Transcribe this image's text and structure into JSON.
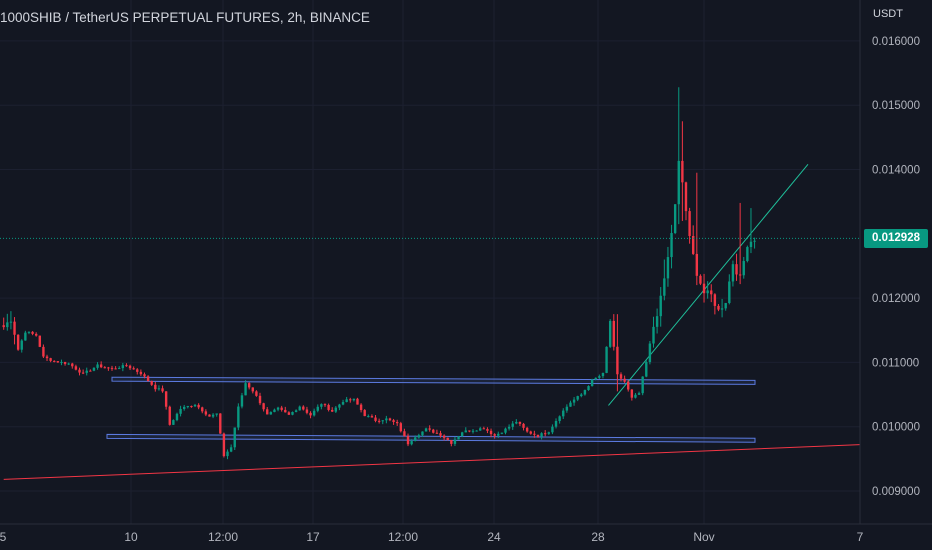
{
  "header": {
    "title": "1000SHIB / TetherUS PERPETUAL FUTURES, 2h, BINANCE",
    "price_unit": "USDT"
  },
  "colors": {
    "background": "#131722",
    "up": "#089981",
    "down": "#f23645",
    "channel": "#5b7ae0",
    "support": "#f23645",
    "trend": "#1fbf9a"
  },
  "chart_data": {
    "type": "candlestick",
    "title": "1000SHIB / TetherUS PERPETUAL FUTURES, 2h, BINANCE",
    "y_unit": "USDT",
    "ylim": [
      0.0085,
      0.0161
    ],
    "y_ticks": [
      "0.016000",
      "0.015000",
      "0.014000",
      "0.012000",
      "0.011000",
      "0.010000",
      "0.009000"
    ],
    "x_ticks": [
      "5",
      "10",
      "12:00",
      "17",
      "12:00",
      "24",
      "28",
      "Nov",
      "7"
    ],
    "last_price": 0.012928,
    "last_price_label": "0.012928",
    "anchors": [
      [
        0,
        0.01155
      ],
      [
        2,
        0.01168
      ],
      [
        4,
        0.0112
      ],
      [
        6,
        0.01148
      ],
      [
        9,
        0.01142
      ],
      [
        11,
        0.01108
      ],
      [
        14,
        0.01102
      ],
      [
        18,
        0.01098
      ],
      [
        22,
        0.01082
      ],
      [
        26,
        0.01095
      ],
      [
        30,
        0.0109
      ],
      [
        34,
        0.01095
      ],
      [
        38,
        0.01083
      ],
      [
        42,
        0.0106
      ],
      [
        44,
        0.01056
      ],
      [
        46,
        0.01003
      ],
      [
        49,
        0.01028
      ],
      [
        53,
        0.01035
      ],
      [
        57,
        0.01016
      ],
      [
        59,
        0.0102
      ],
      [
        61,
        0.00955
      ],
      [
        63,
        0.00968
      ],
      [
        65,
        0.0103
      ],
      [
        67,
        0.01068
      ],
      [
        69,
        0.01056
      ],
      [
        71,
        0.01038
      ],
      [
        73,
        0.01018
      ],
      [
        76,
        0.01028
      ],
      [
        79,
        0.01018
      ],
      [
        82,
        0.01032
      ],
      [
        85,
        0.01018
      ],
      [
        88,
        0.01036
      ],
      [
        91,
        0.01024
      ],
      [
        94,
        0.0104
      ],
      [
        97,
        0.01042
      ],
      [
        100,
        0.01018
      ],
      [
        103,
        0.0101
      ],
      [
        106,
        0.01012
      ],
      [
        109,
        0.01004
      ],
      [
        112,
        0.00974
      ],
      [
        114,
        0.00985
      ],
      [
        117,
        0.00996
      ],
      [
        121,
        0.00988
      ],
      [
        124,
        0.00975
      ],
      [
        127,
        0.00992
      ],
      [
        130,
        0.00995
      ],
      [
        133,
        0.00998
      ],
      [
        136,
        0.00986
      ],
      [
        139,
        0.00996
      ],
      [
        142,
        0.01008
      ],
      [
        145,
        0.00992
      ],
      [
        148,
        0.00986
      ],
      [
        151,
        0.00993
      ],
      [
        154,
        0.01018
      ],
      [
        157,
        0.01038
      ],
      [
        160,
        0.0105
      ],
      [
        163,
        0.01072
      ],
      [
        166,
        0.01082
      ],
      [
        168,
        0.01165
      ],
      [
        170,
        0.0108
      ],
      [
        172,
        0.0107
      ],
      [
        174,
        0.01044
      ],
      [
        176,
        0.01052
      ],
      [
        178,
        0.011
      ],
      [
        180,
        0.01156
      ],
      [
        182,
        0.01198
      ],
      [
        184,
        0.01262
      ],
      [
        186,
        0.01343
      ],
      [
        187,
        0.0141
      ],
      [
        188,
        0.0138
      ],
      [
        190,
        0.01292
      ],
      [
        192,
        0.0124
      ],
      [
        194,
        0.01208
      ],
      [
        196,
        0.01204
      ],
      [
        198,
        0.0118
      ],
      [
        200,
        0.01196
      ],
      [
        202,
        0.01255
      ],
      [
        204,
        0.0123
      ],
      [
        206,
        0.01285
      ],
      [
        208,
        0.01293
      ]
    ],
    "spikes": [
      [
        170,
        0.01055,
        0.01175
      ],
      [
        183,
        0.0121,
        0.0126
      ],
      [
        187,
        0.01315,
        0.01528
      ],
      [
        188,
        0.0132,
        0.01475
      ],
      [
        192,
        0.0125,
        0.01395
      ],
      [
        204,
        0.0124,
        0.01348
      ],
      [
        207,
        0.0127,
        0.0134
      ]
    ],
    "drawings": {
      "channel_upper": [
        0.01077,
        0.01072
      ],
      "channel_lower": [
        0.00988,
        0.00982
      ],
      "support_line": [
        [
          0,
          0.00918
        ],
        [
          250,
          0.00975
        ]
      ],
      "trend_line": [
        [
          175,
          0.01033
        ],
        [
          235,
          0.01408
        ]
      ]
    }
  }
}
